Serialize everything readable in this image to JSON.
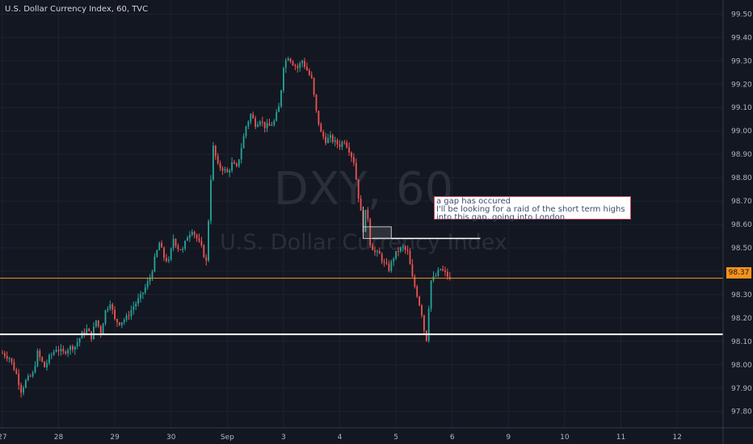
{
  "header": {
    "title": "U.S. Dollar Currency Index, 60, TVC"
  },
  "watermark": {
    "symbol": "DXY, 60",
    "name": "U.S. Dollar Currency Index"
  },
  "annotation": {
    "lines": [
      "a gap has occured",
      "I'll be looking for a raid of the short term highs",
      "into this gap, going into London"
    ]
  },
  "last_price": "98.37",
  "colors": {
    "up": "#26a69a",
    "down": "#ef5350",
    "price_line": "#f7931a",
    "background": "#131722"
  },
  "chart_data": {
    "type": "candlestick",
    "title": "U.S. Dollar Currency Index, 60, TVC",
    "xlabel": "",
    "ylabel": "",
    "ylim": [
      97.73,
      99.56
    ],
    "y_ticks": [
      "99.50",
      "99.40",
      "99.30",
      "99.20",
      "99.10",
      "99.00",
      "98.90",
      "98.80",
      "98.70",
      "98.60",
      "98.50",
      "98.40",
      "98.30",
      "98.20",
      "98.10",
      "98.00",
      "97.90",
      "97.80"
    ],
    "x_ticks": [
      {
        "label": "27",
        "bar": 0
      },
      {
        "label": "28",
        "bar": 24
      },
      {
        "label": "29",
        "bar": 48
      },
      {
        "label": "30",
        "bar": 72
      },
      {
        "label": "Sep",
        "bar": 96
      },
      {
        "label": "3",
        "bar": 120
      },
      {
        "label": "4",
        "bar": 144
      },
      {
        "label": "5",
        "bar": 168
      },
      {
        "label": "6",
        "bar": 192
      },
      {
        "label": "9",
        "bar": 216
      },
      {
        "label": "10",
        "bar": 240
      },
      {
        "label": "11",
        "bar": 264
      },
      {
        "label": "12",
        "bar": 288
      }
    ],
    "bar_count_span": 308,
    "x_start_bar": -1,
    "close_path": [
      [
        0,
        98.05
      ],
      [
        3,
        98.03
      ],
      [
        6,
        97.96
      ],
      [
        8,
        97.89
      ],
      [
        10,
        97.93
      ],
      [
        13,
        97.96
      ],
      [
        15,
        98.05
      ],
      [
        18,
        97.99
      ],
      [
        20,
        98.03
      ],
      [
        23,
        98.07
      ],
      [
        26,
        98.05
      ],
      [
        28,
        98.07
      ],
      [
        31,
        98.08
      ],
      [
        34,
        98.13
      ],
      [
        36,
        98.15
      ],
      [
        38,
        98.12
      ],
      [
        40,
        98.19
      ],
      [
        42,
        98.14
      ],
      [
        44,
        98.23
      ],
      [
        46,
        98.27
      ],
      [
        48,
        98.19
      ],
      [
        50,
        98.18
      ],
      [
        53,
        98.2
      ],
      [
        56,
        98.25
      ],
      [
        59,
        98.29
      ],
      [
        61,
        98.33
      ],
      [
        63,
        98.37
      ],
      [
        65,
        98.45
      ],
      [
        67,
        98.52
      ],
      [
        69,
        98.46
      ],
      [
        71,
        98.44
      ],
      [
        73,
        98.54
      ],
      [
        75,
        98.5
      ],
      [
        77,
        98.49
      ],
      [
        79,
        98.55
      ],
      [
        81,
        98.58
      ],
      [
        83,
        98.54
      ],
      [
        85,
        98.5
      ],
      [
        87,
        98.44
      ],
      [
        88,
        98.62
      ],
      [
        89,
        98.8
      ],
      [
        90,
        98.93
      ],
      [
        92,
        98.85
      ],
      [
        94,
        98.84
      ],
      [
        96,
        98.82
      ],
      [
        98,
        98.86
      ],
      [
        100,
        98.84
      ],
      [
        102,
        98.93
      ],
      [
        104,
        99.02
      ],
      [
        106,
        99.07
      ],
      [
        108,
        99.03
      ],
      [
        110,
        99.05
      ],
      [
        112,
        99.02
      ],
      [
        114,
        99.02
      ],
      [
        116,
        99.04
      ],
      [
        118,
        99.1
      ],
      [
        119,
        99.18
      ],
      [
        120,
        99.28
      ],
      [
        122,
        99.32
      ],
      [
        124,
        99.29
      ],
      [
        126,
        99.27
      ],
      [
        128,
        99.3
      ],
      [
        130,
        99.26
      ],
      [
        132,
        99.22
      ],
      [
        134,
        99.08
      ],
      [
        136,
        98.99
      ],
      [
        138,
        98.96
      ],
      [
        140,
        98.97
      ],
      [
        142,
        98.95
      ],
      [
        144,
        98.94
      ],
      [
        146,
        98.96
      ],
      [
        148,
        98.92
      ],
      [
        150,
        98.87
      ],
      [
        152,
        98.72
      ],
      [
        154,
        98.58
      ],
      [
        155,
        98.65
      ],
      [
        156,
        98.63
      ],
      [
        157,
        98.52
      ],
      [
        159,
        98.48
      ],
      [
        161,
        98.47
      ],
      [
        163,
        98.43
      ],
      [
        165,
        98.41
      ],
      [
        167,
        98.46
      ],
      [
        169,
        98.49
      ],
      [
        171,
        98.5
      ],
      [
        173,
        98.48
      ],
      [
        175,
        98.37
      ],
      [
        177,
        98.3
      ],
      [
        179,
        98.22
      ],
      [
        180,
        98.15
      ],
      [
        181,
        98.11
      ],
      [
        182,
        98.25
      ],
      [
        183,
        98.36
      ],
      [
        185,
        98.38
      ],
      [
        187,
        98.41
      ],
      [
        189,
        98.39
      ],
      [
        191,
        98.37
      ]
    ],
    "gap_box": {
      "bar_start": 154,
      "bar_end": 166,
      "low": 98.54,
      "high": 98.59
    },
    "levels": [
      {
        "type": "horizontal",
        "value": 98.37,
        "color": "#f7931a"
      },
      {
        "type": "horizontal",
        "value": 98.13,
        "color": "#ffffff"
      },
      {
        "type": "segment",
        "value": 98.54,
        "bar_start": 158,
        "bar_end": 204,
        "color": "#ffffff"
      }
    ]
  }
}
